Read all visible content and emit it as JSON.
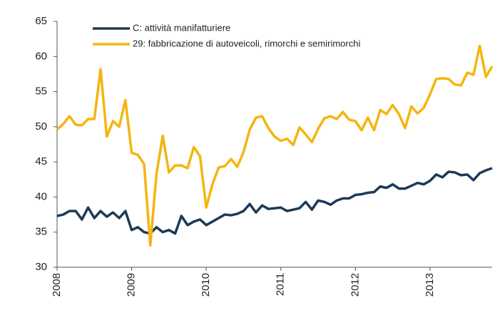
{
  "chart_data": {
    "type": "line",
    "categories": [
      "2008",
      null,
      null,
      null,
      null,
      null,
      null,
      null,
      null,
      null,
      null,
      null,
      "2009",
      null,
      null,
      null,
      null,
      null,
      null,
      null,
      null,
      null,
      null,
      null,
      "2010",
      null,
      null,
      null,
      null,
      null,
      null,
      null,
      null,
      null,
      null,
      null,
      "2011",
      null,
      null,
      null,
      null,
      null,
      null,
      null,
      null,
      null,
      null,
      null,
      "2012",
      null,
      null,
      null,
      null,
      null,
      null,
      null,
      null,
      null,
      null,
      null,
      "2013",
      null,
      null,
      null,
      null,
      null,
      null,
      null,
      null,
      null,
      null
    ],
    "series": [
      {
        "name": "C: attività manifatturiere",
        "color": "#1b3a57",
        "values": [
          37.3,
          37.5,
          38,
          38,
          36.8,
          38.5,
          37,
          38,
          37.2,
          37.8,
          37,
          38,
          35.3,
          35.7,
          35,
          34.8,
          35.7,
          35,
          35.3,
          34.8,
          37.3,
          36,
          36.5,
          36.8,
          36,
          36.5,
          37,
          37.5,
          37.4,
          37.6,
          38,
          39,
          37.8,
          38.8,
          38.3,
          38.4,
          38.5,
          38,
          38.2,
          38.4,
          39.3,
          38.2,
          39.5,
          39.3,
          38.9,
          39.5,
          39.8,
          39.8,
          40.3,
          40.4,
          40.6,
          40.7,
          41.5,
          41.3,
          41.8,
          41.2,
          41.2,
          41.6,
          42,
          41.8,
          42.3,
          43.2,
          42.8,
          43.6,
          43.5,
          43.1,
          43.2,
          42.4,
          43.4,
          43.8,
          44.1
        ]
      },
      {
        "name": "29: fabbricazione di autoveicoli, rimorchi e semirimorchi",
        "color": "#f5b50f",
        "values": [
          49.6,
          50.4,
          51.5,
          50.3,
          50.2,
          51.1,
          51.1,
          58.2,
          48.6,
          50.8,
          50,
          53.8,
          46.3,
          46,
          44.7,
          33.1,
          43.3,
          48.7,
          43.5,
          44.5,
          44.5,
          44.1,
          47.1,
          45.8,
          38.5,
          41.8,
          44.2,
          44.4,
          45.4,
          44.3,
          46.4,
          49.6,
          51.3,
          51.5,
          49.8,
          48.6,
          48,
          48.3,
          47.4,
          49.9,
          48.9,
          47.8,
          49.7,
          51.2,
          51.5,
          51.1,
          52.1,
          51,
          50.8,
          49.5,
          51.3,
          49.5,
          52.4,
          51.8,
          53.1,
          51.8,
          49.8,
          52.9,
          51.9,
          52.7,
          54.6,
          56.8,
          56.9,
          56.8,
          56,
          55.9,
          57.7,
          57.4,
          61.5,
          57.1,
          58.6
        ]
      }
    ],
    "ylim": [
      30,
      65
    ],
    "yticks": [
      30,
      35,
      40,
      45,
      50,
      55,
      60,
      65
    ],
    "grid": false
  }
}
